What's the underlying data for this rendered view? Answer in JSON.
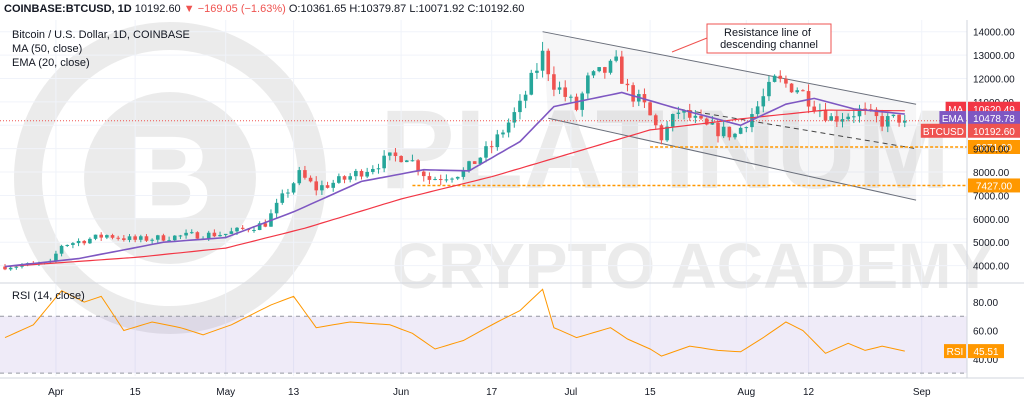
{
  "header": {
    "symbol": "COINBASE:BTCUSD, 1D",
    "last": "10192.60",
    "change": "−169.05 (−1.63%)",
    "open": "O:10361.65",
    "high": "H:10379.87",
    "low": "L:10071.92",
    "close": "C:10192.60"
  },
  "legend": {
    "title": "Bitcoin / U.S. Dollar, 1D, COINBASE",
    "ma": "MA (50, close)",
    "ema": "EMA (20, close)",
    "rsi": "RSI (14, close)"
  },
  "annotation": "Resistance line of descending channel",
  "watermark": {
    "line1": "PLATINUM",
    "line2": "CRYPTO ACADEMY"
  },
  "colors": {
    "up": "#26a69a",
    "down": "#ef5350",
    "ma": "#f23645",
    "ema": "#7e57c2",
    "rsi": "#ff9800",
    "support": "#ff9800",
    "channel": "#6a6f7b"
  },
  "chart_data": [
    {
      "type": "candlestick",
      "title": "Bitcoin / U.S. Dollar, 1D, COINBASE",
      "ylim": [
        3300,
        14500
      ],
      "yticks": [
        4000,
        5000,
        6000,
        7000,
        8000,
        9000,
        10000,
        11000,
        12000,
        13000,
        14000
      ],
      "ytick_labels": [
        "4000.00",
        "5000.00",
        "6000.00",
        "7000.00",
        "8000.00",
        "9000.00",
        "10000.00",
        "11000.00",
        "12000.00",
        "13000.00",
        "14000.00"
      ],
      "x_range": [
        "2019-03-23",
        "2019-09-09"
      ],
      "xticks": [
        "2019-04-01",
        "2019-04-15",
        "2019-05-01",
        "2019-05-13",
        "2019-06-01",
        "2019-06-17",
        "2019-07-01",
        "2019-07-15",
        "2019-08-01",
        "2019-08-12",
        "2019-09-01"
      ],
      "xtick_labels": [
        "Apr",
        "15",
        "May",
        "13",
        "Jun",
        "17",
        "Jul",
        "15",
        "Aug",
        "12",
        "Sep"
      ],
      "anchors": [
        [
          "2019-03-23",
          3960
        ],
        [
          "2019-03-31",
          4100
        ],
        [
          "2019-04-02",
          4880
        ],
        [
          "2019-04-10",
          5300
        ],
        [
          "2019-04-15",
          5100
        ],
        [
          "2019-04-25",
          5300
        ],
        [
          "2019-05-01",
          5360
        ],
        [
          "2019-05-08",
          5800
        ],
        [
          "2019-05-11",
          6900
        ],
        [
          "2019-05-14",
          7900
        ],
        [
          "2019-05-17",
          7300
        ],
        [
          "2019-05-22",
          7700
        ],
        [
          "2019-05-30",
          8600
        ],
        [
          "2019-06-02",
          8700
        ],
        [
          "2019-06-06",
          7700
        ],
        [
          "2019-06-12",
          8000
        ],
        [
          "2019-06-17",
          9100
        ],
        [
          "2019-06-22",
          10800
        ],
        [
          "2019-06-26",
          13000
        ],
        [
          "2019-06-28",
          11800
        ],
        [
          "2019-07-02",
          10700
        ],
        [
          "2019-07-04",
          11900
        ],
        [
          "2019-07-09",
          12600
        ],
        [
          "2019-07-11",
          11500
        ],
        [
          "2019-07-14",
          10800
        ],
        [
          "2019-07-17",
          9500
        ],
        [
          "2019-07-20",
          10600
        ],
        [
          "2019-07-25",
          9900
        ],
        [
          "2019-07-30",
          9600
        ],
        [
          "2019-08-03",
          10800
        ],
        [
          "2019-08-06",
          11900
        ],
        [
          "2019-08-10",
          11600
        ],
        [
          "2019-08-13",
          10900
        ],
        [
          "2019-08-16",
          10300
        ],
        [
          "2019-08-21",
          10600
        ],
        [
          "2019-08-25",
          10150
        ],
        [
          "2019-08-28",
          10300
        ],
        [
          "2019-08-29",
          10192.6
        ]
      ],
      "series": [
        {
          "name": "MA (50, close)",
          "anchors": [
            [
              "2019-03-23",
              3960
            ],
            [
              "2019-04-15",
              4350
            ],
            [
              "2019-05-01",
              4750
            ],
            [
              "2019-05-15",
              5600
            ],
            [
              "2019-06-01",
              6850
            ],
            [
              "2019-06-17",
              7800
            ],
            [
              "2019-07-01",
              8800
            ],
            [
              "2019-07-15",
              9800
            ],
            [
              "2019-08-01",
              10300
            ],
            [
              "2019-08-15",
              10650
            ],
            [
              "2019-08-29",
              10620.49
            ]
          ]
        },
        {
          "name": "EMA (20, close)",
          "anchors": [
            [
              "2019-03-23",
              3960
            ],
            [
              "2019-04-05",
              4300
            ],
            [
              "2019-04-20",
              5000
            ],
            [
              "2019-05-01",
              5200
            ],
            [
              "2019-05-13",
              6300
            ],
            [
              "2019-05-25",
              7600
            ],
            [
              "2019-06-05",
              8100
            ],
            [
              "2019-06-13",
              8050
            ],
            [
              "2019-06-22",
              9300
            ],
            [
              "2019-06-28",
              10800
            ],
            [
              "2019-07-10",
              11400
            ],
            [
              "2019-07-20",
              10700
            ],
            [
              "2019-07-31",
              10000
            ],
            [
              "2019-08-08",
              10900
            ],
            [
              "2019-08-13",
              11150
            ],
            [
              "2019-08-20",
              10700
            ],
            [
              "2019-08-29",
              10478.78
            ]
          ]
        }
      ],
      "channel": {
        "resistance": [
          [
            "2019-06-26",
            14000
          ],
          [
            "2019-08-31",
            10900
          ]
        ],
        "support": [
          [
            "2019-06-27",
            10300
          ],
          [
            "2019-08-31",
            6800
          ]
        ],
        "midline": [
          [
            "2019-07-20",
            10700
          ],
          [
            "2019-08-31",
            9000
          ]
        ]
      },
      "levels": [
        {
          "value": 9071.0,
          "label": "9071.00",
          "from": "2019-07-15"
        },
        {
          "value": 7427.0,
          "label": "7427.00",
          "from": "2019-06-03"
        }
      ],
      "price_labels": [
        {
          "tag": "MA",
          "value": 10620.49,
          "label": "10620.49"
        },
        {
          "tag": "EMA",
          "value": 10478.78,
          "label": "10478.78"
        },
        {
          "tag": "BTCUSD",
          "value": 10192.6,
          "label": "10192.60"
        }
      ]
    },
    {
      "type": "line",
      "title": "RSI (14, close)",
      "ylim": [
        28,
        92
      ],
      "yticks": [
        40,
        60,
        80
      ],
      "ytick_labels": [
        "40.00",
        "60.00",
        "80.00"
      ],
      "band": [
        30,
        70
      ],
      "series": [
        {
          "name": "RSI (14, close)",
          "last": 45.51,
          "label": "45.51",
          "anchors": [
            [
              "2019-03-23",
              55
            ],
            [
              "2019-03-28",
              64
            ],
            [
              "2019-04-02",
              88
            ],
            [
              "2019-04-06",
              80
            ],
            [
              "2019-04-09",
              84
            ],
            [
              "2019-04-13",
              60
            ],
            [
              "2019-04-18",
              66
            ],
            [
              "2019-04-23",
              62
            ],
            [
              "2019-04-27",
              57
            ],
            [
              "2019-05-02",
              64
            ],
            [
              "2019-05-09",
              78
            ],
            [
              "2019-05-13",
              84
            ],
            [
              "2019-05-17",
              62
            ],
            [
              "2019-05-23",
              66
            ],
            [
              "2019-05-30",
              64
            ],
            [
              "2019-06-03",
              58
            ],
            [
              "2019-06-07",
              47
            ],
            [
              "2019-06-12",
              53
            ],
            [
              "2019-06-18",
              66
            ],
            [
              "2019-06-22",
              74
            ],
            [
              "2019-06-26",
              89
            ],
            [
              "2019-06-28",
              62
            ],
            [
              "2019-07-02",
              55
            ],
            [
              "2019-07-08",
              62
            ],
            [
              "2019-07-11",
              54
            ],
            [
              "2019-07-15",
              47
            ],
            [
              "2019-07-17",
              42
            ],
            [
              "2019-07-22",
              49
            ],
            [
              "2019-07-27",
              46
            ],
            [
              "2019-07-31",
              45
            ],
            [
              "2019-08-04",
              55
            ],
            [
              "2019-08-08",
              66
            ],
            [
              "2019-08-11",
              60
            ],
            [
              "2019-08-15",
              44
            ],
            [
              "2019-08-19",
              51
            ],
            [
              "2019-08-22",
              46
            ],
            [
              "2019-08-25",
              49
            ],
            [
              "2019-08-29",
              45.51
            ]
          ]
        }
      ]
    }
  ]
}
